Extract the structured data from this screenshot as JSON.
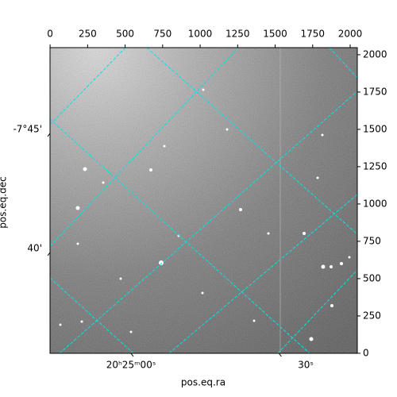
{
  "chart_data": {
    "type": "image",
    "xlabel": "pos.eq.ra",
    "ylabel": "pos.eq.dec",
    "xlim": [
      -0.5,
      2047.5
    ],
    "ylim": [
      -0.5,
      2047.5
    ],
    "xticks": [
      0,
      250,
      500,
      750,
      1000,
      1250,
      1500,
      1750,
      2000
    ],
    "yticks": [
      0,
      250,
      500,
      750,
      1000,
      1250,
      1500,
      1750,
      2000
    ],
    "ra_tick_labels": [
      "20ʰ25ᵐ00ˢ",
      "30ˢ"
    ],
    "dec_tick_labels": [
      "-7°45'",
      "40'"
    ],
    "grid": true,
    "grid_color": "#00e5e5"
  }
}
